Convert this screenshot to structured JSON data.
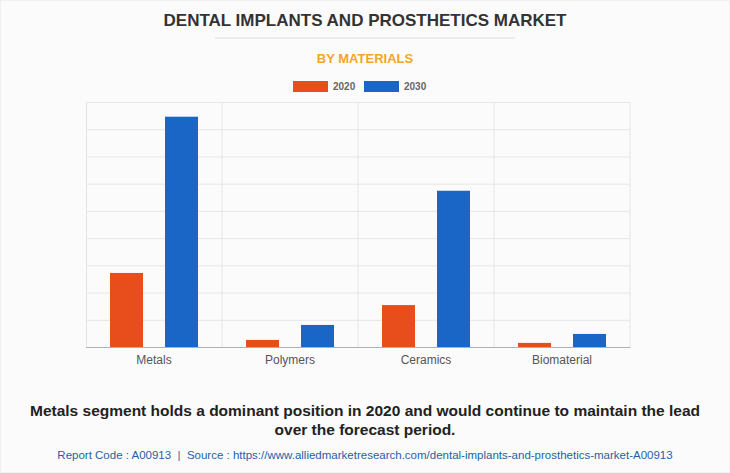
{
  "chart_data": {
    "type": "bar",
    "title": "DENTAL IMPLANTS AND PROSTHETICS MARKET",
    "subtitle": "BY MATERIALS",
    "categories": [
      "Metals",
      "Polymers",
      "Ceramics",
      "Biomaterial"
    ],
    "series": [
      {
        "name": "2020",
        "color": "#e84e1b",
        "values": [
          2.72,
          0.26,
          1.54,
          0.15
        ]
      },
      {
        "name": "2030",
        "color": "#1a66c7",
        "values": [
          8.46,
          0.81,
          5.74,
          0.48
        ]
      }
    ],
    "ylim": [
      0,
      9
    ],
    "yticks": [
      0,
      1,
      2,
      3,
      4,
      5,
      6,
      7,
      8,
      9
    ],
    "grid": true,
    "legend": "top",
    "tick_labels": "x",
    "annotations": [
      "Metals segment holds a dominant position in 2020 and would continue to maintain the lead",
      "over the forecast period."
    ],
    "source": "Report Code : A00913  |  Source : https://www.alliedmarketresearch.com/dental-implants-and-prosthetics-market-A00913"
  }
}
